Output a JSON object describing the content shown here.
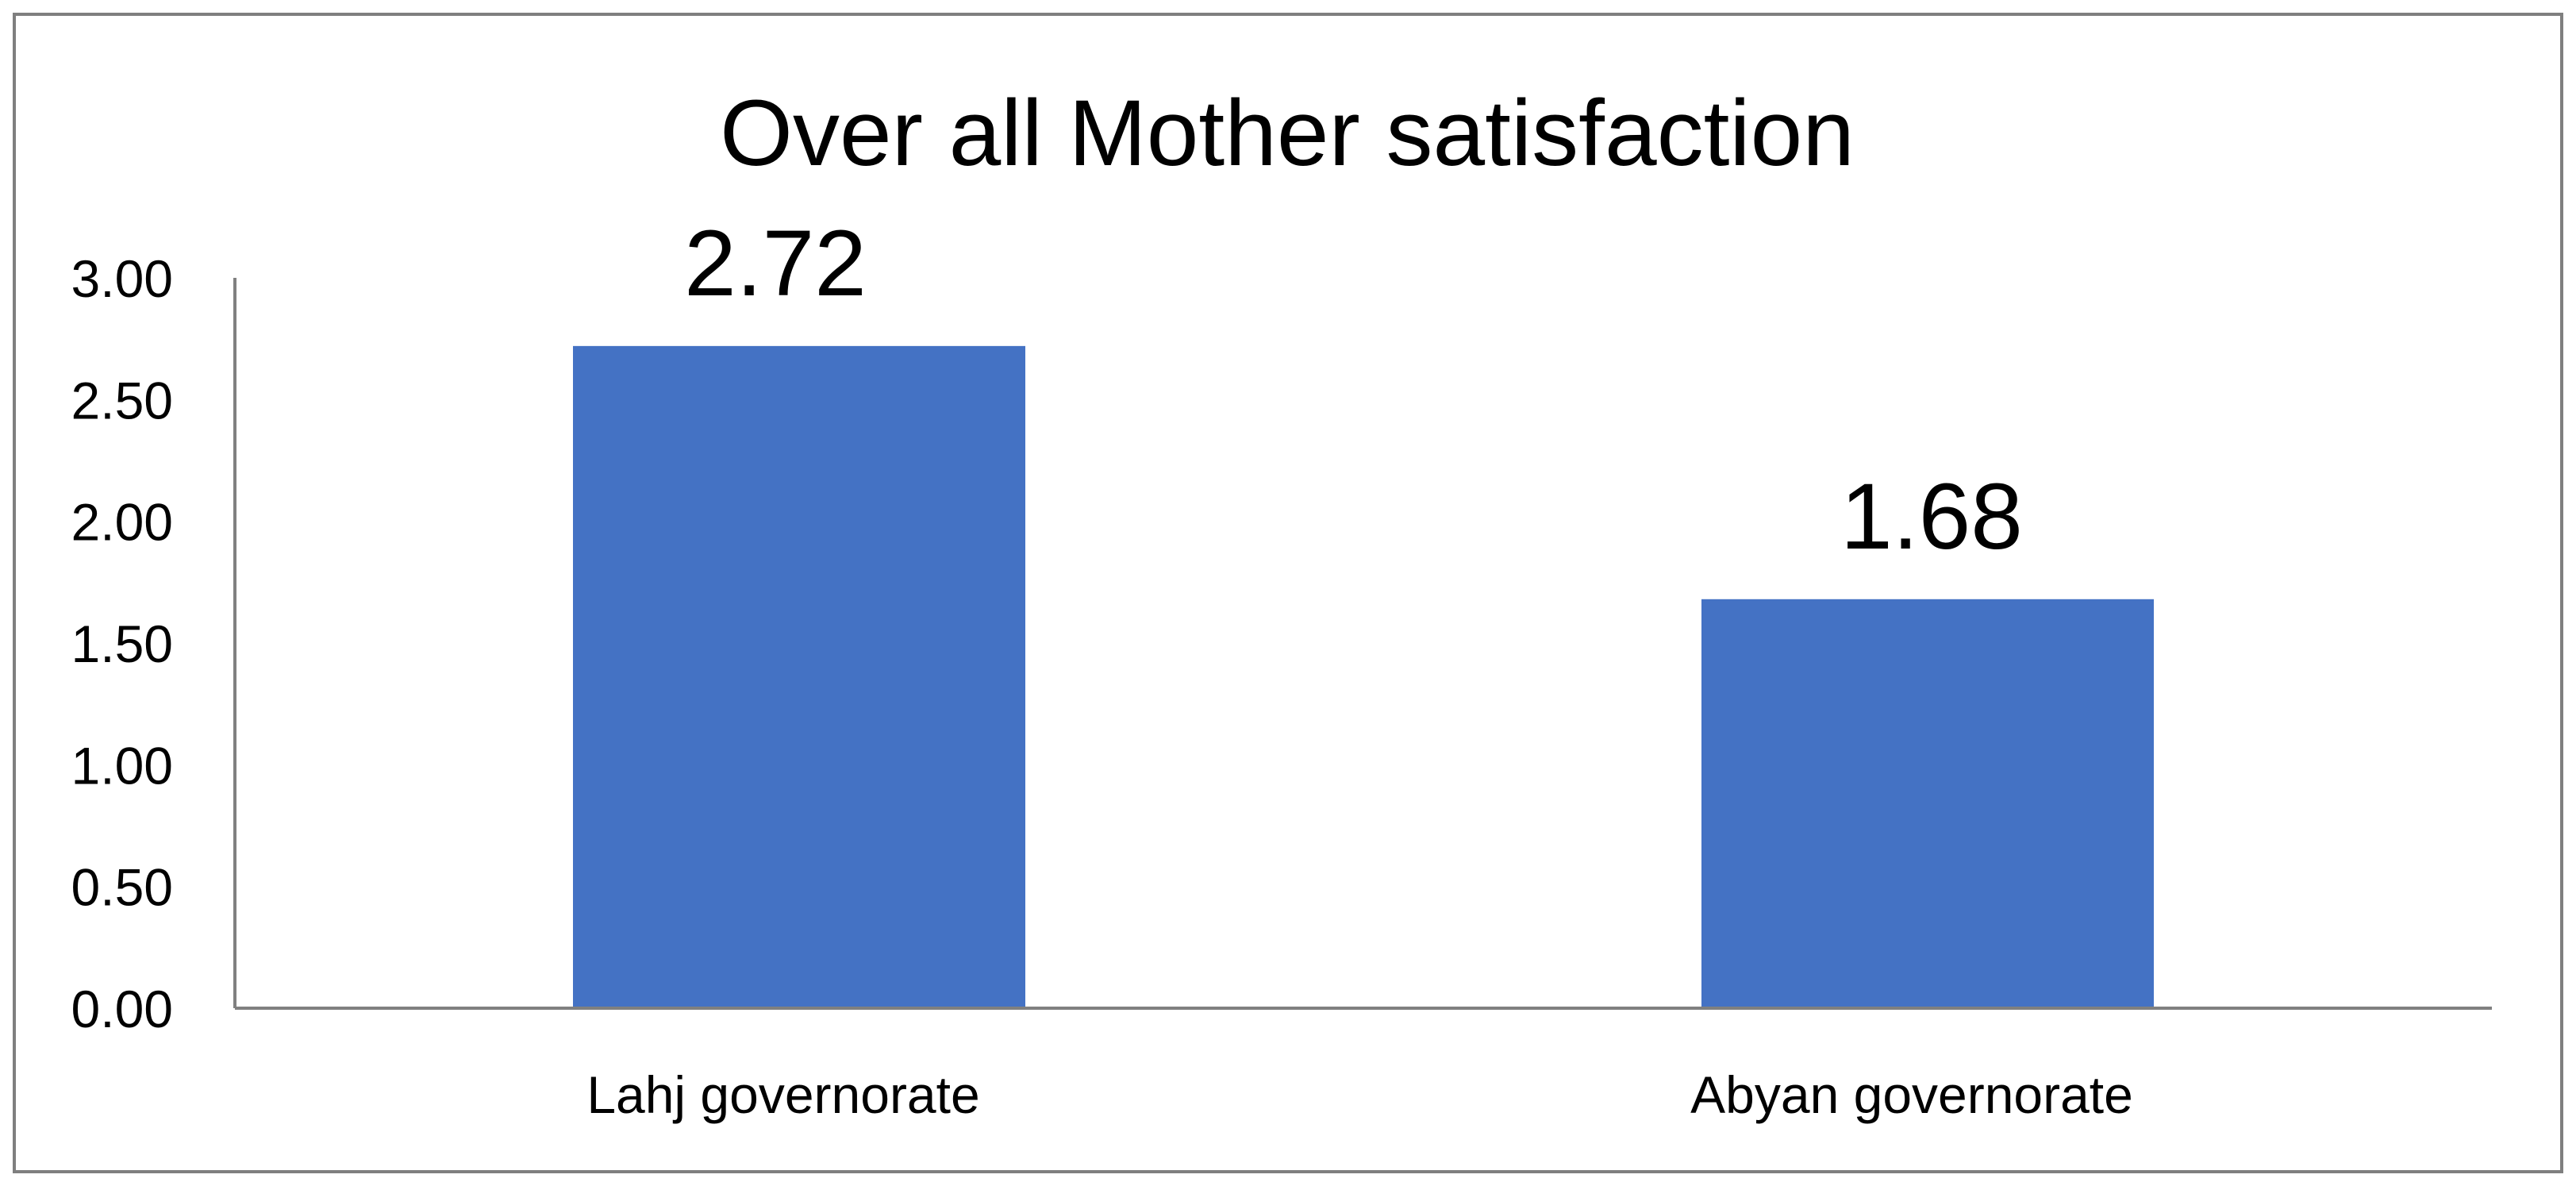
{
  "chart_data": {
    "type": "bar",
    "title": "Over all Mother satisfaction",
    "categories": [
      "Lahj governorate",
      "Abyan governorate"
    ],
    "values": [
      2.72,
      1.68
    ],
    "data_labels": [
      "2.72",
      "1.68"
    ],
    "yticks": [
      "0.00",
      "0.50",
      "1.00",
      "1.50",
      "2.00",
      "2.50",
      "3.00"
    ],
    "ylim": [
      0,
      3
    ],
    "xlabel": "",
    "ylabel": "",
    "grid": false,
    "legend": "none",
    "bar_color": "#4472C4",
    "axis_color": "#808080",
    "border_color": "#7F7F7F"
  }
}
